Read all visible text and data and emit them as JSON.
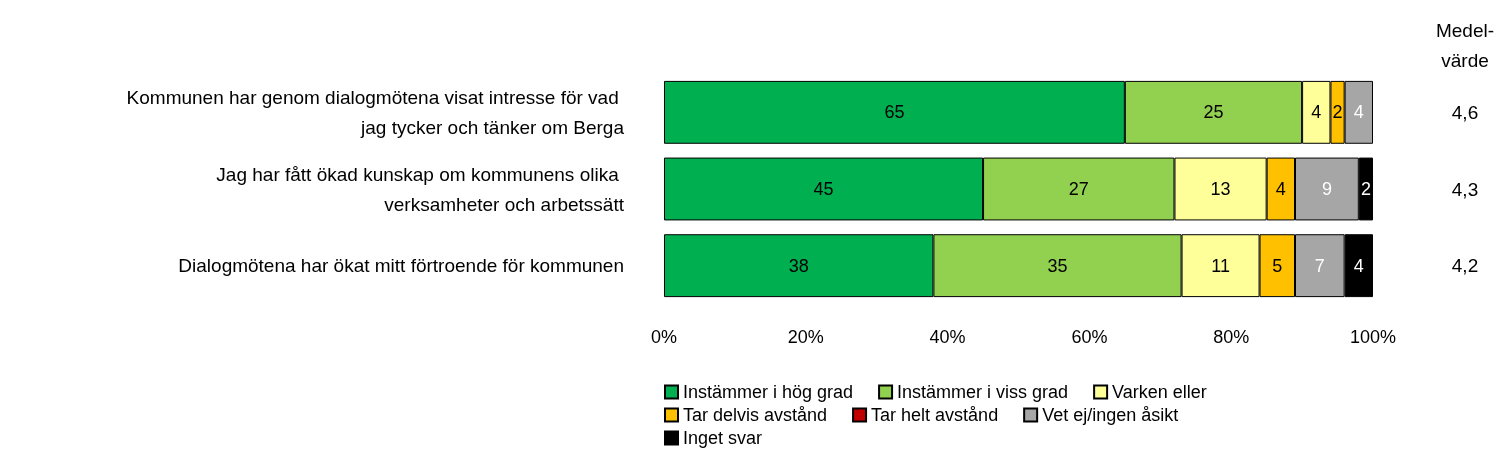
{
  "chart_data": {
    "type": "bar",
    "orientation": "horizontal",
    "stacked": true,
    "categories": [
      "Kommunen har genom dialogmötena visat intresse för vad jag tycker och tänker om Berga",
      "Jag har fått ökad kunskap om kommunens olika verksamheter och arbetssätt",
      "Dialogmötena har ökat mitt förtroende för kommunen"
    ],
    "series": [
      {
        "name": "Instämmer i hög grad",
        "color": "#00b050",
        "values": [
          65,
          45,
          38
        ]
      },
      {
        "name": "Instämmer i viss grad",
        "color": "#92d050",
        "values": [
          25,
          27,
          35
        ]
      },
      {
        "name": "Varken eller",
        "color": "#ffff99",
        "values": [
          4,
          13,
          11
        ]
      },
      {
        "name": "Tar delvis avstånd",
        "color": "#ffc000",
        "values": [
          2,
          4,
          5
        ]
      },
      {
        "name": "Tar helt avstånd",
        "color": "#c00000",
        "values": [
          null,
          null,
          null
        ]
      },
      {
        "name": "Vet ej/ingen åsikt",
        "color": "#a6a6a6",
        "values": [
          4,
          9,
          7
        ]
      },
      {
        "name": "Inget svar",
        "color": "#000000",
        "values": [
          null,
          2,
          4
        ]
      }
    ],
    "xlim": [
      0,
      100
    ],
    "xticks": [
      {
        "value": 0,
        "label": "0%"
      },
      {
        "value": 20,
        "label": "20%"
      },
      {
        "value": 40,
        "label": "40%"
      },
      {
        "value": 60,
        "label": "60%"
      },
      {
        "value": 80,
        "label": "80%"
      },
      {
        "value": 100,
        "label": "100%"
      }
    ],
    "data_labels": true,
    "legend": "bottom",
    "annotations": [
      "Medel-\nvärde",
      "4,6",
      "4,3",
      "4,2"
    ]
  }
}
